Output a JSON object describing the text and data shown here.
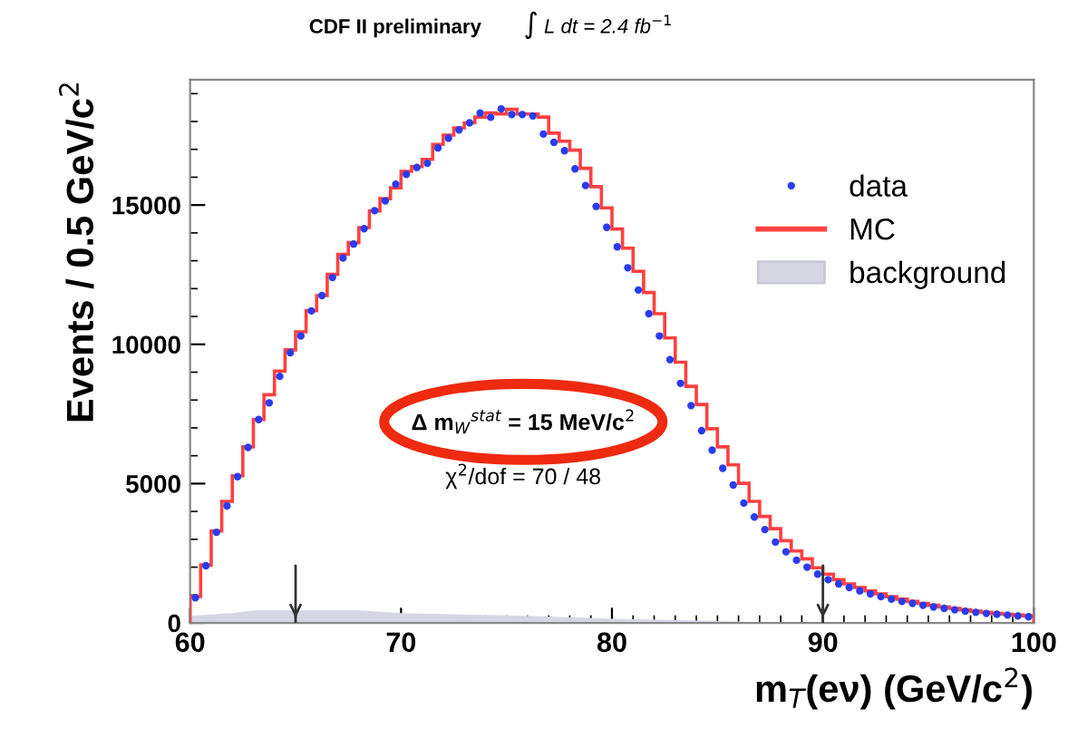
{
  "chart_data": {
    "type": "histogram",
    "title": "CDF II preliminary",
    "xlabel": "m$_{T}$(eν) (GeV/c$^{2}$)",
    "ylabel": "Events / 0.5 GeV/c$^{2}$",
    "bins": [
      60,
      60.5,
      61,
      61.5,
      62,
      62.5,
      63,
      63.5,
      64,
      64.5,
      65,
      65.5,
      66,
      66.5,
      67,
      67.5,
      68,
      68.5,
      69,
      69.5,
      70,
      70.5,
      71,
      71.5,
      72,
      72.5,
      73,
      73.5,
      74,
      74.5,
      75,
      75.5,
      76,
      76.5,
      77,
      77.5,
      78,
      78.5,
      79,
      79.5,
      80,
      80.5,
      81,
      81.5,
      82,
      82.5,
      83,
      83.5,
      84,
      84.5,
      85,
      85.5,
      86,
      86.5,
      87,
      87.5,
      88,
      88.5,
      89,
      89.5,
      90,
      90.5,
      91,
      91.5,
      92,
      92.5,
      93,
      93.5,
      94,
      94.5,
      95,
      95.5,
      96,
      96.5,
      97,
      97.5,
      98,
      98.5,
      99,
      99.5,
      100
    ],
    "series": [
      {
        "name": "data",
        "type": "scatter",
        "marker": "circle",
        "color": "#2a3cf0",
        "x": [
          60.25,
          60.75,
          61.25,
          61.75,
          62.25,
          62.75,
          63.25,
          63.75,
          64.25,
          64.75,
          65.25,
          65.75,
          66.25,
          66.75,
          67.25,
          67.75,
          68.25,
          68.75,
          69.25,
          69.75,
          70.25,
          70.75,
          71.25,
          71.75,
          72.25,
          72.75,
          73.25,
          73.75,
          74.25,
          74.75,
          75.25,
          75.75,
          76.25,
          76.75,
          77.25,
          77.75,
          78.25,
          78.75,
          79.25,
          79.75,
          80.25,
          80.75,
          81.25,
          81.75,
          82.25,
          82.75,
          83.25,
          83.75,
          84.25,
          84.75,
          85.25,
          85.75,
          86.25,
          86.75,
          87.25,
          87.75,
          88.25,
          88.75,
          89.25,
          89.75,
          90.25,
          90.75,
          91.25,
          91.75,
          92.25,
          92.75,
          93.25,
          93.75,
          94.25,
          94.75,
          95.25,
          95.75,
          96.25,
          96.75,
          97.25,
          97.75,
          98.25,
          98.75,
          99.25,
          99.75
        ],
        "values": [
          900,
          2050,
          3250,
          4200,
          5250,
          6300,
          7300,
          7900,
          8850,
          9700,
          10300,
          11200,
          11750,
          12400,
          13100,
          13600,
          14150,
          14800,
          15150,
          15750,
          16100,
          16350,
          16500,
          17050,
          17400,
          17700,
          17950,
          18300,
          18150,
          18450,
          18250,
          18250,
          18200,
          17550,
          17250,
          16950,
          16300,
          15700,
          14950,
          14200,
          13500,
          12750,
          11950,
          11100,
          10300,
          9450,
          8600,
          7800,
          6900,
          6200,
          5550,
          4950,
          4300,
          3800,
          3350,
          2900,
          2550,
          2250,
          2000,
          1750,
          1550,
          1400,
          1270,
          1150,
          1040,
          940,
          850,
          770,
          700,
          630,
          570,
          520,
          470,
          420,
          380,
          340,
          310,
          280,
          250,
          220
        ]
      },
      {
        "name": "MC",
        "color": "#ff4040",
        "values": [
          950,
          2080,
          3300,
          4360,
          5280,
          6320,
          7300,
          8190,
          9040,
          9800,
          10450,
          11210,
          11750,
          12510,
          13230,
          13650,
          14190,
          14790,
          15230,
          15620,
          16210,
          16380,
          16640,
          17180,
          17510,
          17770,
          17950,
          18160,
          18310,
          18270,
          18440,
          18270,
          18270,
          18160,
          17580,
          17290,
          16970,
          16320,
          15660,
          14900,
          14140,
          13450,
          12620,
          11860,
          11100,
          10230,
          9360,
          8490,
          7840,
          6970,
          6320,
          5670,
          5010,
          4360,
          3820,
          3380,
          2950,
          2580,
          2300,
          1980,
          1750,
          1550,
          1400,
          1270,
          1150,
          1040,
          940,
          850,
          770,
          700,
          630,
          570,
          520,
          470,
          420,
          380,
          340,
          310,
          280,
          250
        ]
      },
      {
        "name": "background",
        "type": "area",
        "color": "#d6d7e3",
        "x": [
          60,
          62,
          63,
          68,
          70,
          76,
          80,
          86,
          87
        ],
        "values": [
          250,
          350,
          450,
          450,
          350,
          250,
          150,
          50,
          0
        ]
      }
    ],
    "xlim": [
      60,
      100
    ],
    "xticks": [
      60,
      70,
      80,
      90,
      100
    ],
    "ylim": [
      0,
      19500
    ],
    "yticks": [
      0,
      5000,
      10000,
      15000
    ],
    "ref_lines": [
      {
        "axis": "x",
        "value": 65
      },
      {
        "axis": "x",
        "value": 90
      }
    ],
    "annotations": [
      "∫ L dt = 2.4 fb$^{−1}$",
      "Δ m$_{W}$$^{stat}$ = 15 MeV/c$^{2}$",
      "χ$^{2}$/dof = 70 / 48"
    ],
    "legend": "right",
    "grid": false
  }
}
